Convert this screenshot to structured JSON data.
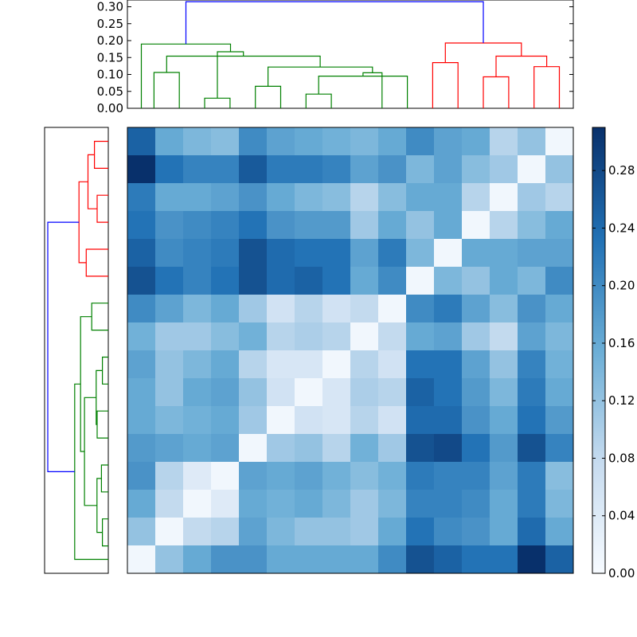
{
  "chart_data": {
    "type": "heatmap",
    "title": "",
    "xlabel": "",
    "ylabel": "",
    "colormap": "Blues",
    "color_range": [
      0,
      0.31
    ],
    "colors": {
      "cmap_low": "#f7fbff",
      "cmap_mid_low": "#c6dbef",
      "cmap_mid": "#6baed6",
      "cmap_mid_high": "#2171b5",
      "cmap_high": "#08306b",
      "cluster_a": "#ff0000",
      "cluster_b": "#008000",
      "root_link": "#0000ff"
    },
    "matrix": [
      [
        0.25,
        0.16,
        0.14,
        0.13,
        0.2,
        0.17,
        0.16,
        0.15,
        0.14,
        0.16,
        0.2,
        0.17,
        0.16,
        0.09,
        0.12,
        0.01
      ],
      [
        0.31,
        0.23,
        0.21,
        0.21,
        0.26,
        0.22,
        0.22,
        0.21,
        0.17,
        0.19,
        0.14,
        0.17,
        0.13,
        0.11,
        0.01,
        0.12
      ],
      [
        0.22,
        0.16,
        0.16,
        0.17,
        0.19,
        0.16,
        0.14,
        0.13,
        0.09,
        0.13,
        0.16,
        0.16,
        0.09,
        0.01,
        0.11,
        0.09
      ],
      [
        0.23,
        0.19,
        0.2,
        0.21,
        0.23,
        0.19,
        0.18,
        0.18,
        0.11,
        0.16,
        0.12,
        0.16,
        0.01,
        0.09,
        0.13,
        0.16
      ],
      [
        0.25,
        0.2,
        0.21,
        0.22,
        0.27,
        0.24,
        0.23,
        0.23,
        0.17,
        0.22,
        0.14,
        0.01,
        0.16,
        0.16,
        0.17,
        0.17
      ],
      [
        0.27,
        0.23,
        0.21,
        0.23,
        0.27,
        0.24,
        0.25,
        0.23,
        0.16,
        0.2,
        0.01,
        0.14,
        0.12,
        0.16,
        0.14,
        0.2
      ],
      [
        0.2,
        0.17,
        0.14,
        0.16,
        0.11,
        0.06,
        0.09,
        0.06,
        0.08,
        0.01,
        0.2,
        0.22,
        0.17,
        0.13,
        0.19,
        0.16
      ],
      [
        0.15,
        0.11,
        0.11,
        0.13,
        0.15,
        0.09,
        0.1,
        0.09,
        0.01,
        0.08,
        0.16,
        0.17,
        0.11,
        0.08,
        0.17,
        0.14
      ],
      [
        0.17,
        0.12,
        0.14,
        0.16,
        0.09,
        0.05,
        0.05,
        0.01,
        0.09,
        0.06,
        0.23,
        0.23,
        0.17,
        0.12,
        0.21,
        0.15
      ],
      [
        0.16,
        0.12,
        0.16,
        0.17,
        0.12,
        0.06,
        0.01,
        0.05,
        0.1,
        0.09,
        0.25,
        0.23,
        0.18,
        0.14,
        0.22,
        0.16
      ],
      [
        0.16,
        0.14,
        0.15,
        0.16,
        0.11,
        0.01,
        0.06,
        0.05,
        0.09,
        0.06,
        0.24,
        0.24,
        0.19,
        0.16,
        0.23,
        0.18
      ],
      [
        0.18,
        0.17,
        0.16,
        0.17,
        0.01,
        0.11,
        0.12,
        0.09,
        0.15,
        0.11,
        0.27,
        0.28,
        0.23,
        0.18,
        0.27,
        0.21
      ],
      [
        0.19,
        0.09,
        0.04,
        0.01,
        0.17,
        0.16,
        0.17,
        0.15,
        0.13,
        0.15,
        0.22,
        0.21,
        0.21,
        0.17,
        0.22,
        0.13
      ],
      [
        0.16,
        0.08,
        0.01,
        0.04,
        0.16,
        0.15,
        0.16,
        0.14,
        0.11,
        0.14,
        0.21,
        0.21,
        0.2,
        0.16,
        0.22,
        0.14
      ],
      [
        0.12,
        0.01,
        0.08,
        0.09,
        0.17,
        0.14,
        0.12,
        0.12,
        0.11,
        0.16,
        0.23,
        0.2,
        0.19,
        0.16,
        0.24,
        0.16
      ],
      [
        0.01,
        0.12,
        0.16,
        0.19,
        0.19,
        0.16,
        0.16,
        0.16,
        0.16,
        0.2,
        0.27,
        0.25,
        0.23,
        0.23,
        0.31,
        0.25
      ]
    ],
    "colorbar": {
      "ticks": [
        0.0,
        0.04,
        0.08,
        0.12,
        0.16,
        0.2,
        0.24,
        0.28
      ],
      "tick_labels": [
        "0.00",
        "0.04",
        "0.08",
        "0.12",
        "0.16",
        "0.20",
        "0.24",
        "0.28"
      ]
    },
    "top_dendrogram": {
      "orientation": "top",
      "ylim": [
        0,
        0.32
      ],
      "ticks": [
        0.0,
        0.05,
        0.1,
        0.15,
        0.2,
        0.25,
        0.3
      ],
      "tick_labels": [
        "0.00",
        "0.05",
        "0.10",
        "0.15",
        "0.20",
        "0.25",
        "0.30"
      ],
      "links": [
        {
          "x": [
            5,
            5,
            15,
            15
          ],
          "y": [
            0,
            0.106,
            0.106,
            0
          ],
          "color": "cluster_b"
        },
        {
          "x": [
            25,
            25,
            35,
            35
          ],
          "y": [
            0,
            0.03,
            0.03,
            0
          ],
          "color": "cluster_b"
        },
        {
          "x": [
            45,
            45,
            55,
            55
          ],
          "y": [
            0,
            0.065,
            0.065,
            0
          ],
          "color": "cluster_b"
        },
        {
          "x": [
            65,
            65,
            75,
            75
          ],
          "y": [
            0,
            0.042,
            0.042,
            0
          ],
          "color": "cluster_b"
        },
        {
          "x": [
            70,
            70,
            105,
            105
          ],
          "y": [
            0.042,
            0.095,
            0.095,
            0
          ],
          "color": "cluster_b"
        },
        {
          "x": [
            87.5,
            87.5,
            95,
            95
          ],
          "y": [
            0.095,
            0.105,
            0.105,
            0
          ],
          "color": "cluster_b"
        },
        {
          "x": [
            50,
            50,
            91.25,
            91.25
          ],
          "y": [
            0.065,
            0.122,
            0.122,
            0.105
          ],
          "color": "cluster_b"
        },
        {
          "x": [
            10,
            10,
            70.6,
            70.6
          ],
          "y": [
            0.106,
            0.154,
            0.154,
            0.122
          ],
          "color": "cluster_b"
        },
        {
          "x": [
            30,
            30,
            40.3,
            40.3
          ],
          "y": [
            0.03,
            0.167,
            0.167,
            0.154
          ],
          "color": "cluster_b"
        },
        {
          "x": [
            0,
            0,
            35.2,
            35.2
          ],
          "y": [
            0,
            0.19,
            0.19,
            0.167
          ],
          "color": "cluster_b"
        },
        {
          "x": [
            115,
            115,
            125,
            125
          ],
          "y": [
            0,
            0.135,
            0.135,
            0
          ],
          "color": "cluster_a"
        },
        {
          "x": [
            135,
            135,
            145,
            145
          ],
          "y": [
            0,
            0.093,
            0.093,
            0
          ],
          "color": "cluster_a"
        },
        {
          "x": [
            155,
            155,
            165,
            165
          ],
          "y": [
            0,
            0.123,
            0.123,
            0
          ],
          "color": "cluster_a"
        },
        {
          "x": [
            140,
            140,
            160,
            160
          ],
          "y": [
            0.093,
            0.154,
            0.154,
            0.123
          ],
          "color": "cluster_a"
        },
        {
          "x": [
            120,
            120,
            150,
            150
          ],
          "y": [
            0.135,
            0.193,
            0.193,
            0.154
          ],
          "color": "cluster_a"
        },
        {
          "x": [
            17.6,
            17.6,
            135,
            135
          ],
          "y": [
            0.19,
            0.315,
            0.315,
            0.193
          ],
          "color": "root_link"
        }
      ]
    },
    "left_dendrogram": {
      "orientation": "left",
      "links": [
        {
          "y": [
            0,
            0,
            10,
            10
          ],
          "x": [
            0,
            0.071,
            0.071,
            0
          ],
          "color": "cluster_a"
        },
        {
          "y": [
            20,
            20,
            30,
            30
          ],
          "x": [
            0,
            0.057,
            0.057,
            0
          ],
          "color": "cluster_a"
        },
        {
          "y": [
            5,
            5,
            25,
            25
          ],
          "x": [
            0.071,
            0.104,
            0.104,
            0.057
          ],
          "color": "cluster_a"
        },
        {
          "y": [
            40,
            40,
            50,
            50
          ],
          "x": [
            0,
            0.113,
            0.113,
            0
          ],
          "color": "cluster_a"
        },
        {
          "y": [
            15,
            15,
            45,
            45
          ],
          "x": [
            0.104,
            0.15,
            0.15,
            0.113
          ],
          "color": "cluster_a"
        },
        {
          "y": [
            60,
            60,
            70,
            70
          ],
          "x": [
            0,
            0.085,
            0.085,
            0
          ],
          "color": "cluster_b"
        },
        {
          "y": [
            80,
            80,
            90,
            90
          ],
          "x": [
            0,
            0.03,
            0.03,
            0
          ],
          "color": "cluster_b"
        },
        {
          "y": [
            100,
            100,
            110,
            110
          ],
          "x": [
            0,
            0.057,
            0.057,
            0
          ],
          "color": "cluster_b"
        },
        {
          "y": [
            85,
            85,
            105,
            105
          ],
          "x": [
            0.03,
            0.062,
            0.062,
            0.057
          ],
          "color": "cluster_b"
        },
        {
          "y": [
            120,
            120,
            130,
            130
          ],
          "x": [
            0,
            0.035,
            0.035,
            0
          ],
          "color": "cluster_b"
        },
        {
          "y": [
            140,
            140,
            150,
            150
          ],
          "x": [
            0,
            0.03,
            0.03,
            0
          ],
          "color": "cluster_b"
        },
        {
          "y": [
            125,
            125,
            145,
            145
          ],
          "x": [
            0.035,
            0.058,
            0.058,
            0.03
          ],
          "color": "cluster_b"
        },
        {
          "y": [
            95,
            95,
            135,
            135
          ],
          "x": [
            0.062,
            0.122,
            0.122,
            0.058
          ],
          "color": "cluster_b"
        },
        {
          "y": [
            65,
            65,
            115,
            115
          ],
          "x": [
            0.085,
            0.142,
            0.142,
            0.122
          ],
          "color": "cluster_b"
        },
        {
          "y": [
            155,
            155,
            90,
            90
          ],
          "x": [
            0,
            0.172,
            0.172,
            0.142
          ],
          "color": "cluster_b"
        },
        {
          "y": [
            30,
            30,
            122.5,
            122.5
          ],
          "x": [
            0.15,
            0.31,
            0.31,
            0.172
          ],
          "color": "root_link"
        }
      ]
    }
  }
}
